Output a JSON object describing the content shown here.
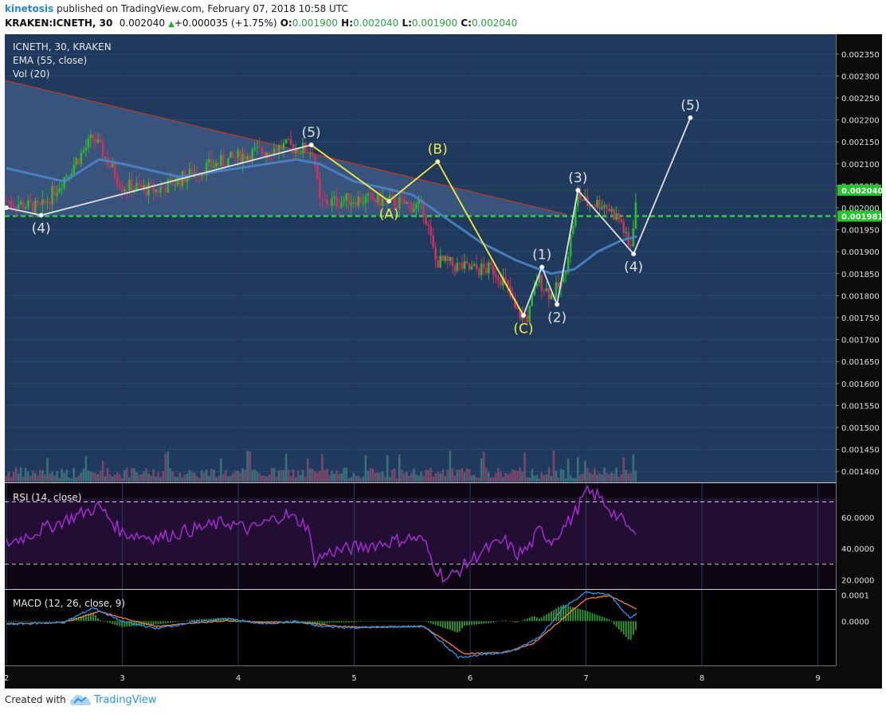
{
  "header": {
    "author": "kinetosis",
    "published_text": "published on TradingView.com, February 07, 2018 10:58 UTC",
    "symbol": "KRAKEN:ICNETH, 30",
    "last_price": "0.002040",
    "change": "+0.000035 (+1.75%)",
    "open_label": "O:",
    "open": "0.001900",
    "high_label": "H:",
    "high": "0.002040",
    "low_label": "L:",
    "low": "0.001900",
    "close_label": "C:",
    "close": "0.002040"
  },
  "panes": {
    "main_legend": [
      "ICNETH, 30, KRAKEN",
      "EMA (55, close)",
      "Vol (20)"
    ],
    "rsi_legend": "RSI (14, close)",
    "macd_legend": "MACD (12, 26, close, 9)"
  },
  "footer": {
    "created_with": "Created with",
    "brand": "TradingView"
  },
  "colors": {
    "background": "#1f3a5c",
    "rsi_background": "#220d33",
    "rsi_line": "#a42bd0",
    "ema": "#4a84c8",
    "bull": "#2eb82e",
    "bear": "#d32f5f",
    "wave_white": "#e0e0e0",
    "wave_yellow": "#f3ec3c",
    "support": "#22d832",
    "macd_line": "#2196f3",
    "signal_line": "#ff7a2a",
    "trend_fill": "#4d6a99"
  },
  "chart_data": [
    {
      "type": "candlestick",
      "title": "ICNETH, 30, KRAKEN",
      "x_ticks": [
        "2",
        "3",
        "4",
        "5",
        "6",
        "7",
        "8",
        "9"
      ],
      "y_ticks": [
        "0.002350",
        "0.002300",
        "0.002250",
        "0.002200",
        "0.002150",
        "0.002100",
        "0.002050",
        "0.002000",
        "0.001950",
        "0.001900",
        "0.001850",
        "0.001800",
        "0.001750",
        "0.001700",
        "0.001650",
        "0.001600",
        "0.001550",
        "0.001500",
        "0.001450",
        "0.001400"
      ],
      "ylim": [
        0.001375,
        0.002395
      ],
      "price_tags": [
        {
          "value": 0.00204,
          "label": "0.002040"
        },
        {
          "value": 0.001981,
          "label": "0.001981"
        }
      ],
      "support_line": 0.001981,
      "anchors": [
        [
          2.0,
          0.002015
        ],
        [
          2.3,
          0.001998
        ],
        [
          2.75,
          0.00216
        ],
        [
          3.0,
          0.00205
        ],
        [
          3.3,
          0.00204
        ],
        [
          3.7,
          0.00209
        ],
        [
          4.05,
          0.00212
        ],
        [
          4.4,
          0.00214
        ],
        [
          4.65,
          0.00213
        ],
        [
          4.7,
          0.00201
        ],
        [
          5.0,
          0.00202
        ],
        [
          5.3,
          0.002015
        ],
        [
          5.6,
          0.002
        ],
        [
          5.7,
          0.00188
        ],
        [
          6.0,
          0.00186
        ],
        [
          6.2,
          0.00186
        ],
        [
          6.3,
          0.00183
        ],
        [
          6.4,
          0.00176
        ],
        [
          6.5,
          0.00175
        ],
        [
          6.58,
          0.00184
        ],
        [
          6.7,
          0.0018
        ],
        [
          6.8,
          0.00183
        ],
        [
          6.93,
          0.00203
        ],
        [
          7.0,
          0.00201
        ],
        [
          7.15,
          0.00201
        ],
        [
          7.3,
          0.00197
        ],
        [
          7.38,
          0.0019
        ],
        [
          7.44,
          0.00204
        ]
      ],
      "ema_anchors": [
        [
          2.0,
          0.00209
        ],
        [
          2.5,
          0.00206
        ],
        [
          2.8,
          0.00211
        ],
        [
          3.0,
          0.0021
        ],
        [
          3.5,
          0.00207
        ],
        [
          4.0,
          0.00209
        ],
        [
          4.5,
          0.00211
        ],
        [
          4.7,
          0.0021
        ],
        [
          5.0,
          0.00206
        ],
        [
          5.5,
          0.00203
        ],
        [
          5.8,
          0.001975
        ],
        [
          6.1,
          0.00192
        ],
        [
          6.4,
          0.00188
        ],
        [
          6.7,
          0.00185
        ],
        [
          6.9,
          0.00186
        ],
        [
          7.1,
          0.0019
        ],
        [
          7.3,
          0.001925
        ],
        [
          7.44,
          0.001935
        ]
      ],
      "trend_line": [
        [
          2.0,
          0.00229
        ],
        [
          6.83,
          0.001985
        ]
      ],
      "waves_white": [
        {
          "points": [
            [
              2.0,
              0.002
            ],
            [
              2.3,
              0.001983
            ],
            [
              4.63,
              0.002143
            ]
          ],
          "labels": [
            {
              "x": 2.3,
              "y": 0.001983,
              "text": "(4)",
              "pos": "below"
            },
            {
              "x": 4.63,
              "y": 0.002143,
              "text": "(5)",
              "pos": "above"
            }
          ]
        },
        {
          "points": [
            [
              6.46,
              0.001755
            ],
            [
              6.62,
              0.001865
            ],
            [
              6.75,
              0.00178
            ],
            [
              6.93,
              0.00204
            ],
            [
              7.41,
              0.001895
            ],
            [
              7.9,
              0.002205
            ]
          ],
          "labels": [
            {
              "x": 6.62,
              "y": 0.001865,
              "text": "(1)",
              "pos": "above"
            },
            {
              "x": 6.75,
              "y": 0.00178,
              "text": "(2)",
              "pos": "below"
            },
            {
              "x": 6.93,
              "y": 0.00204,
              "text": "(3)",
              "pos": "above"
            },
            {
              "x": 7.41,
              "y": 0.001895,
              "text": "(4)",
              "pos": "below"
            },
            {
              "x": 7.9,
              "y": 0.002205,
              "text": "(5)",
              "pos": "above"
            }
          ]
        }
      ],
      "waves_yellow": [
        {
          "points": [
            [
              4.63,
              0.002143
            ],
            [
              5.3,
              0.002015
            ],
            [
              5.72,
              0.002105
            ],
            [
              6.46,
              0.001755
            ]
          ],
          "labels": [
            {
              "x": 5.3,
              "y": 0.002015,
              "text": "(A)",
              "pos": "below"
            },
            {
              "x": 5.72,
              "y": 0.002105,
              "text": "(B)",
              "pos": "above"
            },
            {
              "x": 6.46,
              "y": 0.001755,
              "text": "(C)",
              "pos": "below"
            }
          ]
        }
      ]
    },
    {
      "type": "line",
      "title": "RSI (14, close)",
      "y_ticks": [
        "60.0000",
        "40.0000",
        "20.0000"
      ],
      "ylim": [
        14,
        82
      ],
      "bands": [
        70,
        30
      ],
      "anchors": [
        [
          2.0,
          43
        ],
        [
          2.3,
          52
        ],
        [
          2.6,
          61
        ],
        [
          2.8,
          67
        ],
        [
          3.0,
          50
        ],
        [
          3.3,
          47
        ],
        [
          3.6,
          52
        ],
        [
          3.9,
          57
        ],
        [
          4.1,
          52
        ],
        [
          4.4,
          62
        ],
        [
          4.6,
          55
        ],
        [
          4.65,
          32
        ],
        [
          4.8,
          38
        ],
        [
          5.2,
          43
        ],
        [
          5.5,
          47
        ],
        [
          5.6,
          45
        ],
        [
          5.7,
          28
        ],
        [
          5.8,
          20
        ],
        [
          5.9,
          26
        ],
        [
          6.1,
          38
        ],
        [
          6.3,
          45
        ],
        [
          6.4,
          36
        ],
        [
          6.5,
          40
        ],
        [
          6.6,
          52
        ],
        [
          6.7,
          45
        ],
        [
          6.8,
          53
        ],
        [
          6.9,
          62
        ],
        [
          7.0,
          76
        ],
        [
          7.1,
          74
        ],
        [
          7.25,
          62
        ],
        [
          7.35,
          55
        ],
        [
          7.42,
          47
        ],
        [
          7.44,
          60
        ]
      ]
    },
    {
      "type": "line",
      "title": "MACD (12, 26, close, 9)",
      "y_ticks": [
        "0.0001",
        "0.0000"
      ],
      "ylim": [
        -0.00017,
        0.00012
      ],
      "macd_anchors": [
        [
          2.0,
          -1.2e-05
        ],
        [
          2.5,
          -5e-06
        ],
        [
          2.75,
          5.2e-05
        ],
        [
          3.0,
          -2e-06
        ],
        [
          3.3,
          -2.8e-05
        ],
        [
          3.6,
          -5e-06
        ],
        [
          3.9,
          1e-05
        ],
        [
          4.2,
          -1e-05
        ],
        [
          4.5,
          -2e-06
        ],
        [
          4.7,
          -2e-05
        ],
        [
          5.0,
          -2.5e-05
        ],
        [
          5.3,
          -2.2e-05
        ],
        [
          5.6,
          -2e-05
        ],
        [
          5.9,
          -0.000138
        ],
        [
          6.2,
          -0.000125
        ],
        [
          6.4,
          -0.00011
        ],
        [
          6.6,
          -6e-05
        ],
        [
          6.8,
          5e-05
        ],
        [
          7.0,
          0.00011
        ],
        [
          7.2,
          0.000102
        ],
        [
          7.38,
          1e-05
        ],
        [
          7.44,
          3e-05
        ]
      ],
      "signal_anchors": [
        [
          2.0,
          -1e-05
        ],
        [
          2.5,
          -5e-06
        ],
        [
          2.8,
          3.8e-05
        ],
        [
          3.0,
          1.2e-05
        ],
        [
          3.3,
          -2e-05
        ],
        [
          3.6,
          -8e-06
        ],
        [
          3.9,
          2e-06
        ],
        [
          4.2,
          -4e-06
        ],
        [
          4.6,
          -5e-06
        ],
        [
          4.8,
          -1.8e-05
        ],
        [
          5.1,
          -2.4e-05
        ],
        [
          5.4,
          -2.2e-05
        ],
        [
          5.6,
          -2e-05
        ],
        [
          5.95,
          -0.000125
        ],
        [
          6.3,
          -0.00012
        ],
        [
          6.55,
          -8.5e-05
        ],
        [
          6.8,
          1e-05
        ],
        [
          7.0,
          8.5e-05
        ],
        [
          7.2,
          9.8e-05
        ],
        [
          7.44,
          4.5e-05
        ]
      ]
    }
  ]
}
